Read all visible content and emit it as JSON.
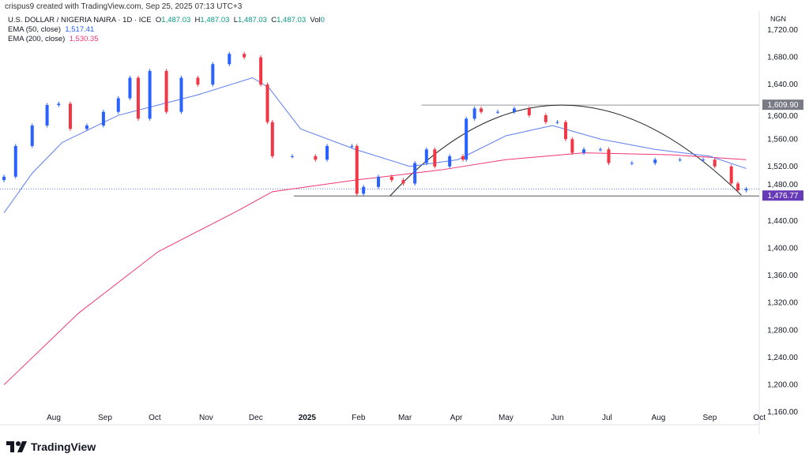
{
  "credit": "crispus9 created with TradingView.com, Sep 25, 2025 07:13 UTC+3",
  "legend": {
    "symbol": "U.S. DOLLAR / NIGERIA NAIRA · 1D · ICE",
    "o_label": "O",
    "o": "1,487.03",
    "h_label": "H",
    "h": "1,487.03",
    "l_label": "L",
    "l": "1,487.03",
    "c_label": "C",
    "c": "1,487.03",
    "vol_label": "Vol",
    "vol": "0",
    "ema50_label": "EMA (50, close)",
    "ema50": "1,517.41",
    "ema200_label": "EMA (200, close)",
    "ema200": "1,530.35"
  },
  "logo": "TradingView",
  "colors": {
    "up": "#2962ff",
    "down": "#f23645",
    "ema50": "#5b7cf0",
    "ema200": "#f23674",
    "label_purple": "#673ab7",
    "label_gray": "#787b86"
  },
  "chart_data": {
    "type": "candlestick",
    "currency": "NGN",
    "ylim": [
      1140,
      1740
    ],
    "yticks": [
      "1,720.00",
      "1,680.00",
      "1,640.00",
      "1,600.00",
      "1,560.00",
      "1,520.00",
      "1,480.00",
      "1,440.00",
      "1,400.00",
      "1,360.00",
      "1,320.00",
      "1,280.00",
      "1,240.00",
      "1,200.00",
      "1,160.00"
    ],
    "ytick_values": [
      1720,
      1680,
      1640,
      1600,
      1560,
      1520,
      1480,
      1440,
      1400,
      1360,
      1320,
      1280,
      1240,
      1200,
      1160
    ],
    "xticks": [
      [
        "Aug",
        "2024-08-01"
      ],
      [
        "Sep",
        "2024-09-01"
      ],
      [
        "Oct",
        "2024-10-01"
      ],
      [
        "Nov",
        "2024-11-01"
      ],
      [
        "Dec",
        "2024-12-01"
      ],
      [
        "2025",
        "2025-01-01"
      ],
      [
        "Feb",
        "2025-02-01"
      ],
      [
        "Mar",
        "2025-03-01"
      ],
      [
        "Apr",
        "2025-04-01"
      ],
      [
        "May",
        "2025-05-01"
      ],
      [
        "Jun",
        "2025-06-01"
      ],
      [
        "Jul",
        "2025-07-01"
      ],
      [
        "Aug",
        "2025-08-01"
      ],
      [
        "Sep",
        "2025-09-01"
      ],
      [
        "Oct",
        "2025-10-01"
      ]
    ],
    "closes": [
      [
        "2024-07-02",
        1505
      ],
      [
        "2024-07-09",
        1550
      ],
      [
        "2024-07-19",
        1580
      ],
      [
        "2024-07-28",
        1610
      ],
      [
        "2024-08-04",
        1612
      ],
      [
        "2024-08-11",
        1575
      ],
      [
        "2024-08-21",
        1580
      ],
      [
        "2024-08-31",
        1600
      ],
      [
        "2024-09-09",
        1620
      ],
      [
        "2024-09-16",
        1650
      ],
      [
        "2024-09-21",
        1590
      ],
      [
        "2024-09-28",
        1660
      ],
      [
        "2024-10-08",
        1600
      ],
      [
        "2024-10-17",
        1650
      ],
      [
        "2024-10-27",
        1640
      ],
      [
        "2024-11-05",
        1670
      ],
      [
        "2024-11-15",
        1685
      ],
      [
        "2024-11-24",
        1680
      ],
      [
        "2024-12-04",
        1640
      ],
      [
        "2024-12-08",
        1585
      ],
      [
        "2024-12-11",
        1535
      ],
      [
        "2024-12-23",
        1535
      ],
      [
        "2025-01-06",
        1530
      ],
      [
        "2025-01-13",
        1550
      ],
      [
        "2025-01-28",
        1550
      ],
      [
        "2025-01-31",
        1480
      ],
      [
        "2025-02-04",
        1490
      ],
      [
        "2025-02-13",
        1505
      ],
      [
        "2025-02-21",
        1500
      ],
      [
        "2025-02-28",
        1495
      ],
      [
        "2025-03-07",
        1525
      ],
      [
        "2025-03-14",
        1545
      ],
      [
        "2025-03-19",
        1520
      ],
      [
        "2025-03-28",
        1535
      ],
      [
        "2025-04-05",
        1530
      ],
      [
        "2025-04-07",
        1590
      ],
      [
        "2025-04-12",
        1605
      ],
      [
        "2025-04-16",
        1600
      ],
      [
        "2025-04-26",
        1600
      ],
      [
        "2025-05-06",
        1605
      ],
      [
        "2025-05-15",
        1595
      ],
      [
        "2025-05-25",
        1585
      ],
      [
        "2025-06-01",
        1585
      ],
      [
        "2025-06-06",
        1560
      ],
      [
        "2025-06-10",
        1540
      ],
      [
        "2025-06-17",
        1545
      ],
      [
        "2025-06-27",
        1545
      ],
      [
        "2025-07-02",
        1525
      ],
      [
        "2025-07-16",
        1525
      ],
      [
        "2025-07-30",
        1530
      ],
      [
        "2025-08-14",
        1530
      ],
      [
        "2025-08-28",
        1530
      ],
      [
        "2025-09-04",
        1520
      ],
      [
        "2025-09-14",
        1495
      ],
      [
        "2025-09-18",
        1485
      ],
      [
        "2025-09-23",
        1487
      ]
    ],
    "ema50": [
      [
        "2024-07-02",
        1452
      ],
      [
        "2024-07-19",
        1510
      ],
      [
        "2024-08-06",
        1555
      ],
      [
        "2024-09-09",
        1595
      ],
      [
        "2024-10-27",
        1625
      ],
      [
        "2024-11-29",
        1650
      ],
      [
        "2024-12-09",
        1635
      ],
      [
        "2024-12-28",
        1575
      ],
      [
        "2025-01-30",
        1545
      ],
      [
        "2025-03-04",
        1520
      ],
      [
        "2025-04-02",
        1530
      ],
      [
        "2025-05-01",
        1565
      ],
      [
        "2025-05-29",
        1580
      ],
      [
        "2025-06-27",
        1560
      ],
      [
        "2025-07-30",
        1545
      ],
      [
        "2025-09-01",
        1535
      ],
      [
        "2025-09-23",
        1517
      ]
    ],
    "ema200": [
      [
        "2024-07-02",
        1200
      ],
      [
        "2024-08-16",
        1305
      ],
      [
        "2024-10-03",
        1395
      ],
      [
        "2024-11-20",
        1455
      ],
      [
        "2024-12-11",
        1483
      ],
      [
        "2025-01-30",
        1500
      ],
      [
        "2025-03-23",
        1515
      ],
      [
        "2025-05-01",
        1530
      ],
      [
        "2025-06-17",
        1540
      ],
      [
        "2025-08-09",
        1537
      ],
      [
        "2025-09-23",
        1530
      ]
    ],
    "last_price": 1487.03,
    "resistance": {
      "value": 1609.9,
      "label": "1,609.90",
      "from": "2025-03-11"
    },
    "support": {
      "value": 1476.77,
      "label": "1,476.77",
      "from": "2024-12-24"
    },
    "arc": {
      "start": [
        "2025-02-20",
        1476.77
      ],
      "peak": [
        "2025-06-01",
        1610
      ],
      "end": [
        "2025-09-20",
        1478
      ]
    }
  }
}
